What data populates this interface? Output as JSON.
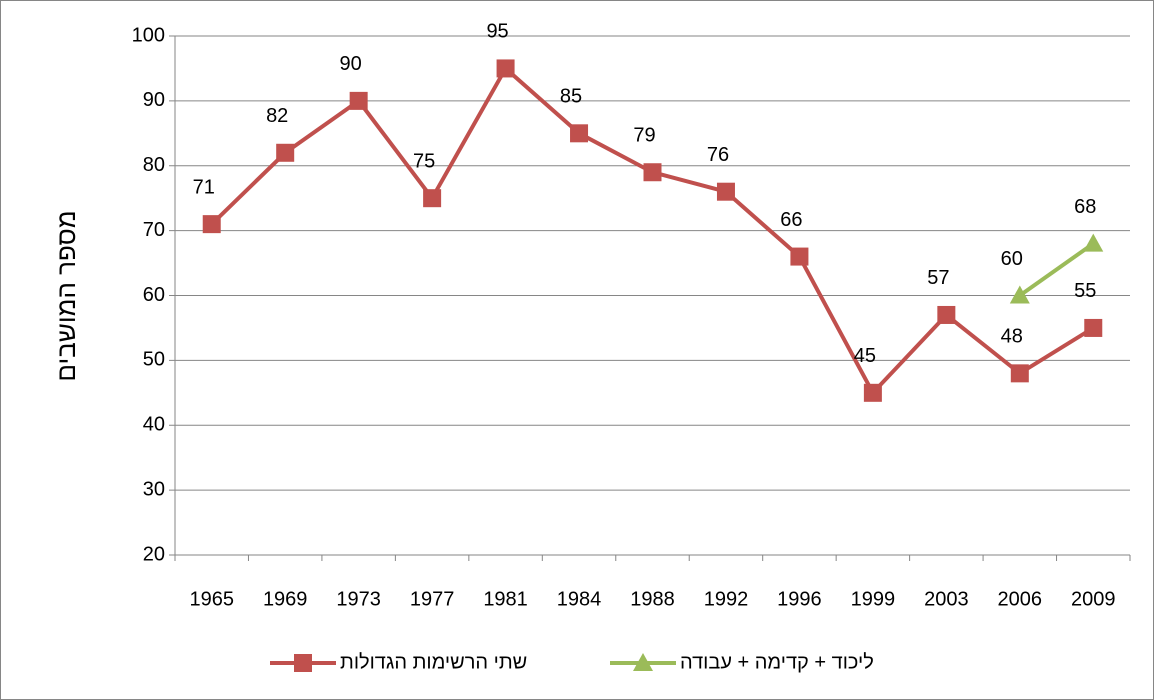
{
  "chart_data": {
    "type": "line",
    "y_label": "מספר המושבים",
    "categories": [
      "1965",
      "1969",
      "1973",
      "1977",
      "1981",
      "1984",
      "1988",
      "1992",
      "1996",
      "1999",
      "2003",
      "2006",
      "2009"
    ],
    "series": [
      {
        "name": "שתי הרשימות הגדולות",
        "color": "#c0504d",
        "marker": "square",
        "values": [
          71,
          82,
          90,
          75,
          95,
          85,
          79,
          76,
          66,
          45,
          57,
          48,
          55
        ]
      },
      {
        "name": "ליכוד + קדימה + עבודה",
        "color": "#9bbb59",
        "marker": "triangle",
        "values": [
          null,
          null,
          null,
          null,
          null,
          null,
          null,
          null,
          null,
          null,
          null,
          60,
          68
        ]
      }
    ],
    "ylim": [
      20,
      100
    ],
    "yticks": [
      20,
      30,
      40,
      50,
      60,
      70,
      80,
      90,
      100
    ],
    "grid": true,
    "legend": "bottom"
  }
}
